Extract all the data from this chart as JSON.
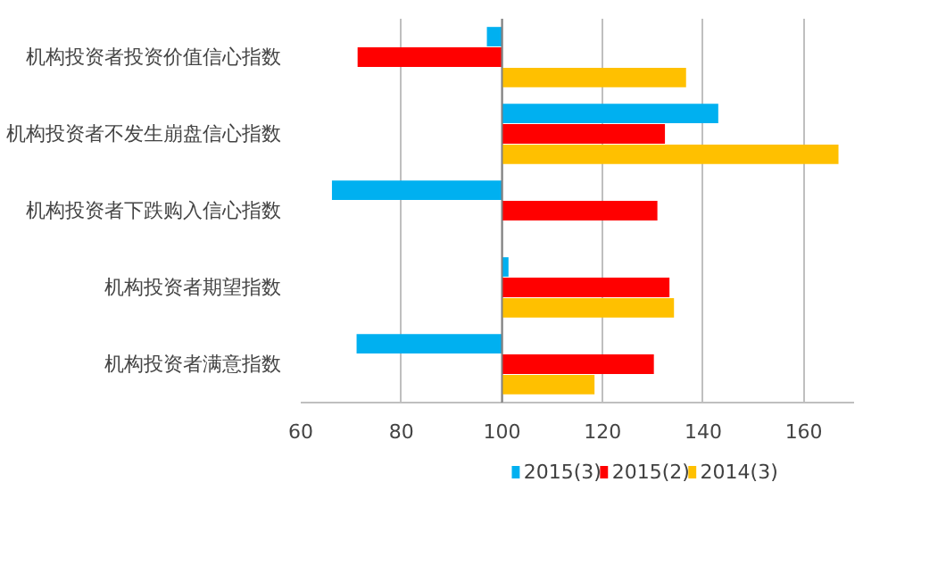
{
  "chart_data": {
    "type": "bar",
    "orientation": "horizontal",
    "categories": [
      "机构投资者投资价值信心指数",
      "机构投资者不发生崩盘信心指数",
      "机构投资者下跌购入信心指数",
      "机构投资者期望指数",
      "机构投资者满意指数"
    ],
    "series": [
      {
        "name": "2015(3)",
        "color": "#00b0f0",
        "base": [
          100,
          100,
          100,
          100,
          100
        ],
        "values": [
          -3,
          43,
          -33.8,
          1.3,
          -28.9
        ]
      },
      {
        "name": "2015(2)",
        "color": "#ff0000",
        "base": [
          100,
          100,
          100,
          100,
          100
        ],
        "values": [
          -28.7,
          32.4,
          30.9,
          33.3,
          30.2
        ]
      },
      {
        "name": "2014(3)",
        "color": "#ffc000",
        "base": [
          100,
          100,
          null,
          100,
          100
        ],
        "values": [
          36.6,
          66.9,
          null,
          34.2,
          18.4
        ]
      }
    ],
    "xlim": [
      60,
      170
    ],
    "xticks": [
      60,
      80,
      100,
      120,
      140,
      160
    ],
    "ref_lines": [
      {
        "axis": "x",
        "value": 100,
        "color": "#808080"
      }
    ],
    "grid": "x",
    "legend": "bottom"
  }
}
